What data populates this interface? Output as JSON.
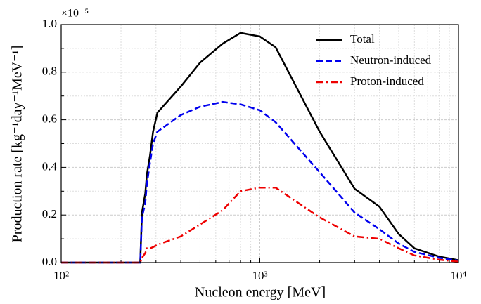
{
  "chart_data": {
    "type": "line",
    "x_label": "Nucleon energy [MeV]",
    "y_label": "Production rate [kg⁻¹day⁻¹MeV⁻¹]",
    "y_multiplier": "×10⁻⁵",
    "x_scale": "log",
    "grid": true,
    "legend_position": "upper right",
    "xlim": [
      100,
      10000
    ],
    "xticks": [
      {
        "value": 100,
        "label": "10²"
      },
      {
        "value": 1000,
        "label": "10³"
      },
      {
        "value": 10000,
        "label": "10⁴"
      }
    ],
    "ylim": [
      0,
      1
    ],
    "yticks": [
      {
        "value": 0,
        "label": "0.0"
      },
      0.2,
      0.4,
      0.6,
      0.8,
      {
        "value": 1,
        "label": "1.0"
      }
    ],
    "x": [
      100,
      250,
      255,
      265,
      270,
      280,
      290,
      305,
      400,
      500,
      650,
      800,
      1000,
      1200,
      2000,
      3000,
      4000,
      5000,
      6000,
      8000,
      10000
    ],
    "series": [
      {
        "name": "Total",
        "color": "#000000",
        "linestyle": "solid",
        "values": [
          0,
          0,
          0.21,
          0.29,
          0.37,
          0.45,
          0.55,
          0.63,
          0.74,
          0.84,
          0.92,
          0.965,
          0.95,
          0.905,
          0.55,
          0.31,
          0.235,
          0.12,
          0.06,
          0.025,
          0.01
        ]
      },
      {
        "name": "Neutron-induced",
        "color": "#0000ee",
        "linestyle": "dashed",
        "values": [
          0,
          0,
          0.19,
          0.25,
          0.33,
          0.42,
          0.5,
          0.55,
          0.62,
          0.655,
          0.675,
          0.665,
          0.64,
          0.59,
          0.38,
          0.21,
          0.14,
          0.08,
          0.045,
          0.02,
          0.008
        ]
      },
      {
        "name": "Proton-induced",
        "color": "#ee0000",
        "linestyle": "dashdot",
        "values": [
          0,
          0,
          0.02,
          0.04,
          0.06,
          0.06,
          0.065,
          0.075,
          0.11,
          0.16,
          0.22,
          0.3,
          0.315,
          0.315,
          0.19,
          0.11,
          0.1,
          0.06,
          0.03,
          0.012,
          0.004
        ]
      }
    ]
  }
}
